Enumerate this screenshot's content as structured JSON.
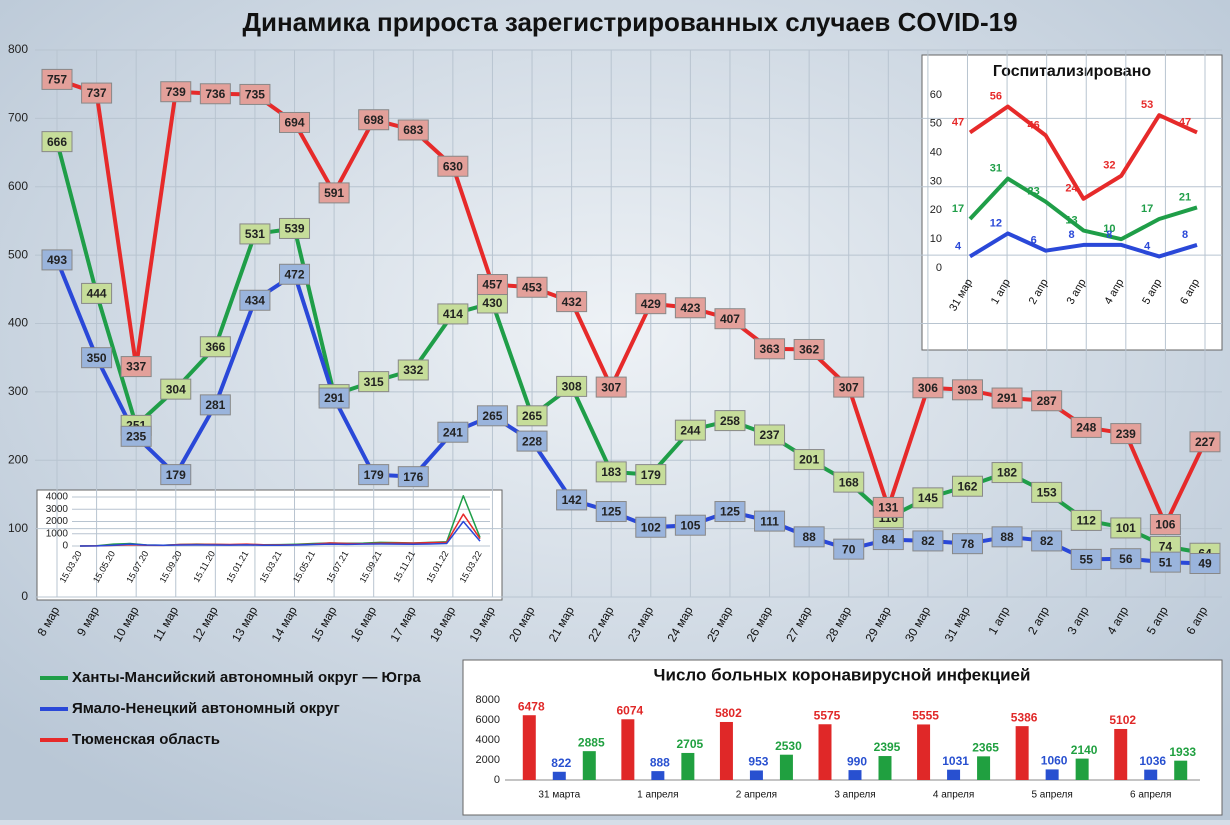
{
  "chart_data": [
    {
      "type": "line",
      "title": "Динамика прироста зарегистрированных случаев COVID-19",
      "categories": [
        "8 мар",
        "9 мар",
        "10 мар",
        "11 мар",
        "12 мар",
        "13 мар",
        "14 мар",
        "15 мар",
        "16 мар",
        "17 мар",
        "18 мар",
        "19 мар",
        "20 мар",
        "21 мар",
        "22 мар",
        "23 мар",
        "24 мар",
        "25 мар",
        "26 мар",
        "27 мар",
        "28 мар",
        "29 мар",
        "30 мар",
        "31 мар",
        "1 апр",
        "2 апр",
        "3 апр",
        "4 апр",
        "5 апр",
        "6 апр"
      ],
      "series": [
        {
          "name": "Ханты-Мансийский автономный округ — Югра",
          "color": "#1f9e48",
          "values": [
            666,
            444,
            251,
            304,
            366,
            531,
            539,
            296,
            315,
            332,
            414,
            430,
            265,
            308,
            183,
            179,
            244,
            258,
            237,
            201,
            168,
            116,
            145,
            162,
            182,
            153,
            112,
            101,
            74,
            64
          ]
        },
        {
          "name": "Ямало-Ненецкий автономный округ",
          "color": "#2a48d8",
          "values": [
            493,
            350,
            235,
            179,
            281,
            434,
            472,
            291,
            179,
            176,
            241,
            265,
            228,
            142,
            125,
            102,
            105,
            125,
            111,
            88,
            70,
            84,
            82,
            78,
            88,
            82,
            55,
            56,
            51,
            49
          ]
        },
        {
          "name": "Тюменская область",
          "color": "#e62a2a",
          "values": [
            757,
            737,
            337,
            739,
            736,
            735,
            694,
            591,
            698,
            683,
            630,
            457,
            453,
            432,
            307,
            429,
            423,
            407,
            363,
            362,
            307,
            131,
            306,
            303,
            291,
            287,
            248,
            239,
            106,
            227
          ]
        }
      ],
      "ylim": [
        0,
        800
      ],
      "yticks": [
        0,
        100,
        200,
        300,
        400,
        500,
        600,
        700,
        800
      ],
      "grid": true
    },
    {
      "type": "line",
      "title": "Госпитализировано",
      "categories": [
        "31 мар",
        "1 апр",
        "2 апр",
        "3 апр",
        "4 апр",
        "5 апр",
        "6 апр"
      ],
      "series": [
        {
          "color": "#e62a2a",
          "values": [
            47,
            56,
            46,
            24,
            32,
            53,
            47
          ]
        },
        {
          "color": "#1f9e48",
          "values": [
            17,
            31,
            23,
            13,
            10,
            17,
            21
          ]
        },
        {
          "color": "#2a48d8",
          "values": [
            4,
            12,
            6,
            8,
            8,
            4,
            8
          ]
        }
      ],
      "ylim": [
        0,
        60
      ],
      "yticks": [
        0,
        10,
        20,
        30,
        40,
        50,
        60
      ],
      "grid": false
    },
    {
      "type": "bar",
      "title": "Число больных коронавирусной  инфекцией",
      "categories": [
        "31 марта",
        "1 апреля",
        "2 апреля",
        "3 апреля",
        "4 апреля",
        "5 апреля",
        "6 апреля"
      ],
      "series": [
        {
          "color": "#e02828",
          "values": [
            6478,
            6074,
            5802,
            5575,
            5555,
            5386,
            5102
          ]
        },
        {
          "color": "#2850d0",
          "values": [
            822,
            888,
            953,
            990,
            1031,
            1060,
            1036
          ]
        },
        {
          "color": "#20a040",
          "values": [
            2885,
            2705,
            2530,
            2395,
            2365,
            2140,
            1933
          ]
        }
      ],
      "ylim": [
        0,
        8000
      ],
      "yticks": [
        0,
        2000,
        4000,
        6000,
        8000
      ],
      "grid": false
    },
    {
      "type": "line",
      "categories": [
        "15.03.20",
        null,
        "15.05.20",
        null,
        "15.07.20",
        null,
        "15.09.20",
        null,
        "15.11.20",
        null,
        "15.01.21",
        null,
        "15.03.21",
        null,
        "15.05.21",
        null,
        "15.07.21",
        null,
        "15.09.21",
        null,
        "15.11.21",
        null,
        "15.01.22",
        null,
        "15.03.22"
      ],
      "series": [
        {
          "color": "#1f9e48",
          "values": [
            0,
            20,
            150,
            200,
            80,
            60,
            120,
            150,
            130,
            100,
            130,
            100,
            110,
            140,
            200,
            250,
            220,
            230,
            300,
            280,
            250,
            300,
            350,
            4100,
            700
          ]
        },
        {
          "color": "#e62a2a",
          "values": [
            0,
            10,
            50,
            100,
            60,
            50,
            120,
            130,
            130,
            120,
            150,
            100,
            90,
            100,
            150,
            250,
            200,
            180,
            220,
            250,
            230,
            280,
            300,
            2600,
            600
          ]
        },
        {
          "color": "#2a48d8",
          "values": [
            0,
            10,
            60,
            150,
            80,
            60,
            80,
            90,
            80,
            70,
            90,
            60,
            60,
            80,
            120,
            150,
            130,
            150,
            160,
            150,
            140,
            160,
            200,
            2000,
            400
          ]
        }
      ],
      "ylim": [
        0,
        4000
      ],
      "yticks": [
        0,
        1000,
        2000,
        3000,
        4000
      ],
      "grid": true
    }
  ]
}
